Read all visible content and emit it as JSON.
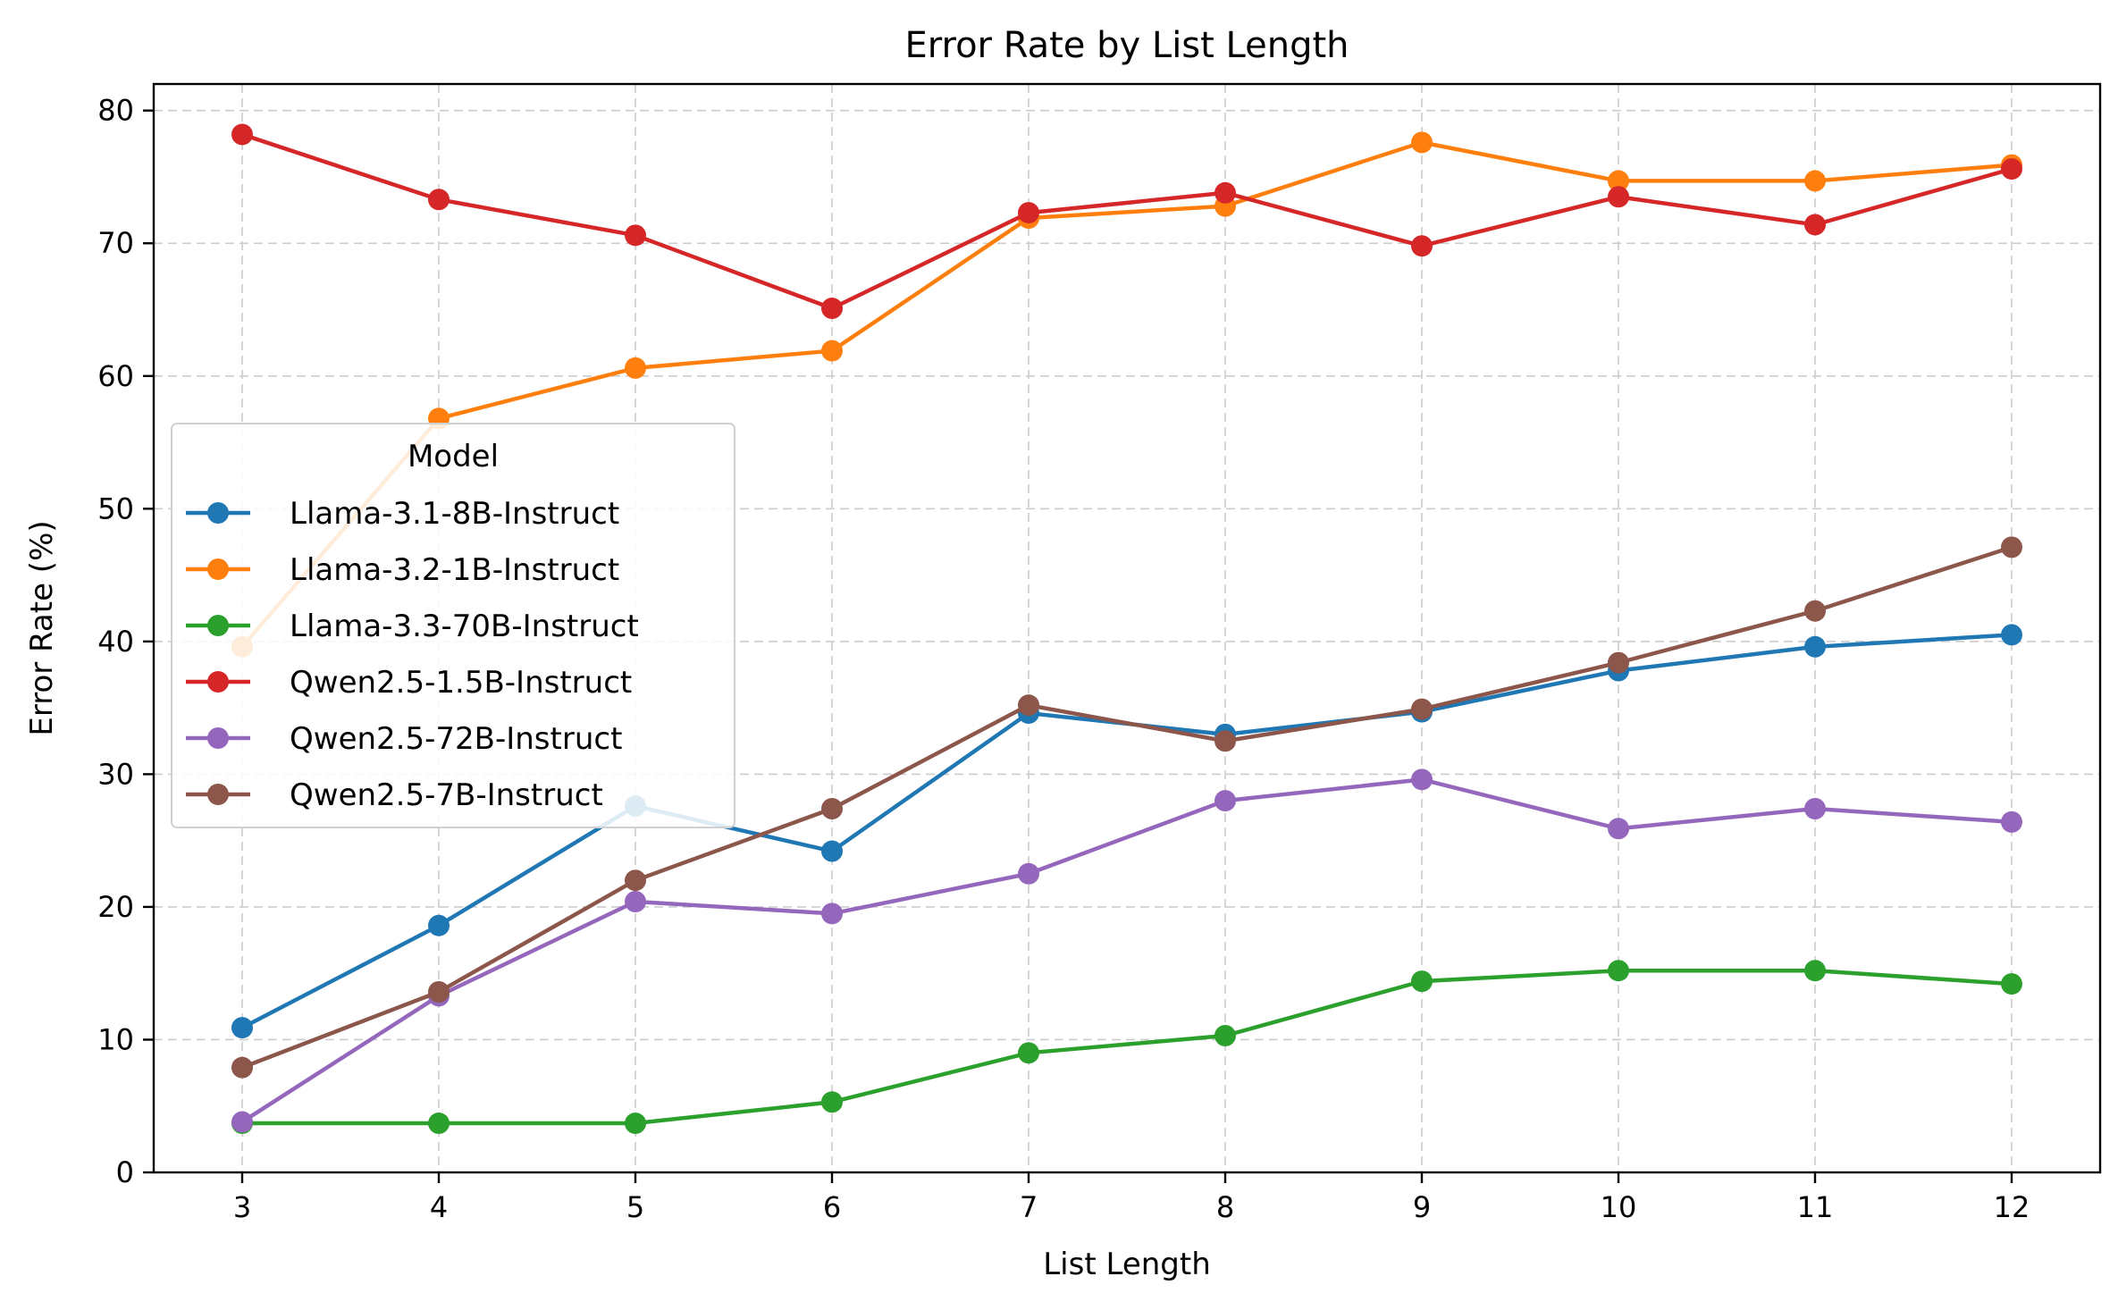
{
  "chart_data": {
    "type": "line",
    "title": "Error Rate by List Length",
    "xlabel": "List Length",
    "ylabel": "Error Rate (%)",
    "x": [
      3,
      4,
      5,
      6,
      7,
      8,
      9,
      10,
      11,
      12
    ],
    "xlim": [
      2.55,
      12.45
    ],
    "ylim": [
      0,
      82
    ],
    "yticks": [
      0,
      10,
      20,
      30,
      40,
      50,
      60,
      70,
      80
    ],
    "grid": true,
    "legend": {
      "title": "Model",
      "placement": "center-left"
    },
    "series": [
      {
        "name": "Llama-3.1-8B-Instruct",
        "color": "#1f77b4",
        "values": [
          10.9,
          18.6,
          27.6,
          24.2,
          34.6,
          33.0,
          34.7,
          37.8,
          39.6,
          40.5
        ]
      },
      {
        "name": "Llama-3.2-1B-Instruct",
        "color": "#ff7f0e",
        "values": [
          39.6,
          56.8,
          60.6,
          61.9,
          71.9,
          72.8,
          77.6,
          74.7,
          74.7,
          75.9
        ]
      },
      {
        "name": "Llama-3.3-70B-Instruct",
        "color": "#2ca02c",
        "values": [
          3.7,
          3.7,
          3.7,
          5.3,
          9.0,
          10.3,
          14.4,
          15.2,
          15.2,
          14.2
        ]
      },
      {
        "name": "Qwen2.5-1.5B-Instruct",
        "color": "#d62728",
        "values": [
          78.2,
          73.3,
          70.6,
          65.1,
          72.3,
          73.8,
          69.8,
          73.5,
          71.4,
          75.6
        ]
      },
      {
        "name": "Qwen2.5-72B-Instruct",
        "color": "#9467bd",
        "values": [
          3.8,
          13.3,
          20.4,
          19.5,
          22.5,
          28.0,
          29.6,
          25.9,
          27.4,
          26.4
        ]
      },
      {
        "name": "Qwen2.5-7B-Instruct",
        "color": "#8c564b",
        "values": [
          7.9,
          13.6,
          22.0,
          27.4,
          35.2,
          32.5,
          34.9,
          38.4,
          42.3,
          47.1
        ]
      }
    ]
  }
}
